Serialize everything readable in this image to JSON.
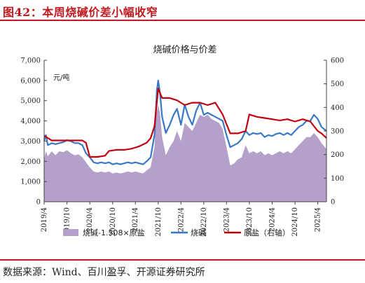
{
  "figure": {
    "title": "图42：本周烧碱价差小幅收窄",
    "source": "数据来源：Wind、百川盈孚、开源证券研究所"
  },
  "colors": {
    "accent": "#c0191f",
    "spread_fill": "#b3a1c9",
    "caustic_line": "#3a78c4",
    "salt_line": "#c0000f"
  },
  "chart_data": {
    "type": "area",
    "title": "烧碱价格与价差",
    "unit_label": "元/吨",
    "x_ticks": [
      "2019/4",
      "2019/10",
      "2020/4",
      "2020/10",
      "2021/4",
      "2021/10",
      "2022/4",
      "2022/10",
      "2023/4",
      "2023/10",
      "2024/4",
      "2024/10",
      "2025/4"
    ],
    "x_range": [
      "2019-04-01",
      "2025-06-10"
    ],
    "y_left": {
      "min": 0,
      "max": 7000,
      "ticks": [
        "0",
        "1,000",
        "2,000",
        "3,000",
        "4,000",
        "5,000",
        "6,000",
        "7,000"
      ]
    },
    "y_right": {
      "min": 0,
      "max": 600,
      "ticks": [
        "0",
        "100",
        "200",
        "300",
        "400",
        "500",
        "600"
      ]
    },
    "legend_position": "bottom",
    "series": [
      {
        "name": "烧碱-1.508×原盐",
        "kind": "area",
        "axis": "left",
        "points": [
          [
            "2019-04-01",
            2100
          ],
          [
            "2019-04-15",
            2500
          ],
          [
            "2019-05-01",
            2250
          ],
          [
            "2019-06-01",
            2500
          ],
          [
            "2019-07-01",
            2300
          ],
          [
            "2019-08-01",
            2500
          ],
          [
            "2019-09-01",
            2450
          ],
          [
            "2019-10-01",
            2550
          ],
          [
            "2019-11-01",
            2400
          ],
          [
            "2019-12-01",
            2300
          ],
          [
            "2020-01-01",
            2350
          ],
          [
            "2020-02-01",
            2200
          ],
          [
            "2020-03-01",
            1950
          ],
          [
            "2020-04-01",
            1700
          ],
          [
            "2020-05-01",
            1500
          ],
          [
            "2020-06-01",
            1450
          ],
          [
            "2020-07-01",
            1500
          ],
          [
            "2020-08-01",
            1450
          ],
          [
            "2020-09-01",
            1500
          ],
          [
            "2020-10-01",
            1400
          ],
          [
            "2020-11-01",
            1450
          ],
          [
            "2020-12-01",
            1400
          ],
          [
            "2021-01-01",
            1450
          ],
          [
            "2021-02-01",
            1500
          ],
          [
            "2021-03-01",
            1450
          ],
          [
            "2021-04-01",
            1500
          ],
          [
            "2021-05-01",
            1450
          ],
          [
            "2021-06-01",
            1400
          ],
          [
            "2021-07-01",
            1550
          ],
          [
            "2021-08-01",
            1700
          ],
          [
            "2021-09-01",
            2700
          ],
          [
            "2021-09-15",
            4300
          ],
          [
            "2021-10-01",
            4800
          ],
          [
            "2021-10-15",
            4400
          ],
          [
            "2021-11-01",
            3200
          ],
          [
            "2021-12-01",
            2300
          ],
          [
            "2022-01-01",
            2700
          ],
          [
            "2022-02-01",
            3000
          ],
          [
            "2022-03-01",
            3500
          ],
          [
            "2022-04-01",
            3000
          ],
          [
            "2022-05-01",
            3900
          ],
          [
            "2022-06-01",
            3700
          ],
          [
            "2022-07-01",
            3500
          ],
          [
            "2022-08-01",
            3900
          ],
          [
            "2022-09-01",
            4300
          ],
          [
            "2022-10-01",
            4200
          ],
          [
            "2022-11-01",
            4300
          ],
          [
            "2022-12-01",
            4100
          ],
          [
            "2023-01-01",
            4000
          ],
          [
            "2023-02-01",
            3900
          ],
          [
            "2023-03-01",
            3600
          ],
          [
            "2023-04-01",
            2700
          ],
          [
            "2023-05-01",
            1800
          ],
          [
            "2023-06-01",
            1900
          ],
          [
            "2023-07-01",
            2100
          ],
          [
            "2023-08-01",
            2200
          ],
          [
            "2023-09-01",
            2800
          ],
          [
            "2023-10-01",
            2400
          ],
          [
            "2023-11-01",
            2500
          ],
          [
            "2023-12-01",
            2400
          ],
          [
            "2024-01-01",
            2500
          ],
          [
            "2024-02-01",
            2300
          ],
          [
            "2024-03-01",
            2400
          ],
          [
            "2024-04-01",
            2300
          ],
          [
            "2024-05-01",
            2400
          ],
          [
            "2024-06-01",
            2500
          ],
          [
            "2024-07-01",
            2400
          ],
          [
            "2024-08-01",
            2500
          ],
          [
            "2024-09-01",
            2400
          ],
          [
            "2024-10-01",
            2600
          ],
          [
            "2024-11-01",
            2800
          ],
          [
            "2024-12-01",
            3000
          ],
          [
            "2025-01-01",
            3200
          ],
          [
            "2025-02-01",
            3200
          ],
          [
            "2025-03-01",
            3400
          ],
          [
            "2025-04-01",
            3200
          ],
          [
            "2025-05-01",
            2900
          ],
          [
            "2025-06-10",
            2600
          ]
        ]
      },
      {
        "name": "烧碱",
        "kind": "line",
        "axis": "left",
        "points": [
          [
            "2019-04-01",
            3000
          ],
          [
            "2019-04-15",
            3300
          ],
          [
            "2019-05-01",
            2800
          ],
          [
            "2019-06-01",
            2900
          ],
          [
            "2019-07-01",
            2850
          ],
          [
            "2019-08-01",
            2900
          ],
          [
            "2019-09-01",
            2950
          ],
          [
            "2019-10-01",
            3050
          ],
          [
            "2019-11-01",
            3000
          ],
          [
            "2019-12-01",
            2900
          ],
          [
            "2020-01-01",
            2900
          ],
          [
            "2020-02-01",
            2800
          ],
          [
            "2020-03-01",
            2400
          ],
          [
            "2020-04-01",
            2200
          ],
          [
            "2020-05-01",
            1950
          ],
          [
            "2020-06-01",
            1900
          ],
          [
            "2020-07-01",
            1950
          ],
          [
            "2020-08-01",
            1900
          ],
          [
            "2020-09-01",
            1950
          ],
          [
            "2020-10-01",
            1850
          ],
          [
            "2020-11-01",
            1900
          ],
          [
            "2020-12-01",
            1850
          ],
          [
            "2021-01-01",
            1900
          ],
          [
            "2021-02-01",
            1950
          ],
          [
            "2021-03-01",
            1900
          ],
          [
            "2021-04-01",
            1950
          ],
          [
            "2021-05-01",
            1900
          ],
          [
            "2021-06-01",
            1850
          ],
          [
            "2021-07-01",
            2000
          ],
          [
            "2021-08-01",
            2200
          ],
          [
            "2021-09-01",
            3300
          ],
          [
            "2021-09-20",
            5500
          ],
          [
            "2021-10-01",
            6000
          ],
          [
            "2021-10-15",
            5400
          ],
          [
            "2021-11-01",
            4200
          ],
          [
            "2021-12-01",
            3400
          ],
          [
            "2022-01-01",
            3800
          ],
          [
            "2022-02-01",
            4300
          ],
          [
            "2022-03-01",
            4600
          ],
          [
            "2022-04-01",
            3800
          ],
          [
            "2022-05-01",
            4800
          ],
          [
            "2022-06-01",
            4200
          ],
          [
            "2022-07-01",
            3800
          ],
          [
            "2022-08-01",
            4500
          ],
          [
            "2022-09-01",
            4900
          ],
          [
            "2022-10-01",
            4300
          ],
          [
            "2022-11-01",
            4400
          ],
          [
            "2022-12-01",
            4300
          ],
          [
            "2023-01-01",
            4200
          ],
          [
            "2023-02-01",
            4100
          ],
          [
            "2023-03-01",
            4000
          ],
          [
            "2023-04-01",
            3300
          ],
          [
            "2023-05-01",
            2700
          ],
          [
            "2023-06-01",
            2800
          ],
          [
            "2023-07-01",
            2900
          ],
          [
            "2023-08-01",
            3100
          ],
          [
            "2023-09-01",
            3500
          ],
          [
            "2023-10-01",
            3300
          ],
          [
            "2023-11-01",
            3400
          ],
          [
            "2023-12-01",
            3350
          ],
          [
            "2024-01-01",
            3400
          ],
          [
            "2024-02-01",
            3200
          ],
          [
            "2024-03-01",
            3300
          ],
          [
            "2024-04-01",
            3250
          ],
          [
            "2024-05-01",
            3350
          ],
          [
            "2024-06-01",
            3400
          ],
          [
            "2024-07-01",
            3300
          ],
          [
            "2024-08-01",
            3400
          ],
          [
            "2024-09-01",
            3300
          ],
          [
            "2024-10-01",
            3500
          ],
          [
            "2024-11-01",
            3700
          ],
          [
            "2024-12-01",
            3800
          ],
          [
            "2025-01-01",
            4000
          ],
          [
            "2025-02-01",
            4000
          ],
          [
            "2025-03-01",
            4300
          ],
          [
            "2025-04-01",
            4100
          ],
          [
            "2025-05-01",
            3700
          ],
          [
            "2025-06-10",
            3500
          ]
        ]
      },
      {
        "name": "原盐（右轴）",
        "kind": "line",
        "axis": "right",
        "points": [
          [
            "2019-04-01",
            280
          ],
          [
            "2019-05-01",
            270
          ],
          [
            "2019-06-01",
            260
          ],
          [
            "2019-08-01",
            260
          ],
          [
            "2019-10-01",
            260
          ],
          [
            "2019-12-01",
            260
          ],
          [
            "2020-02-01",
            260
          ],
          [
            "2020-03-01",
            250
          ],
          [
            "2020-04-01",
            190
          ],
          [
            "2020-06-01",
            190
          ],
          [
            "2020-08-01",
            195
          ],
          [
            "2020-09-01",
            215
          ],
          [
            "2020-11-01",
            220
          ],
          [
            "2021-01-01",
            220
          ],
          [
            "2021-03-01",
            225
          ],
          [
            "2021-05-01",
            235
          ],
          [
            "2021-07-01",
            250
          ],
          [
            "2021-08-01",
            270
          ],
          [
            "2021-09-01",
            320
          ],
          [
            "2021-10-01",
            480
          ],
          [
            "2021-11-01",
            440
          ],
          [
            "2022-01-01",
            440
          ],
          [
            "2022-03-01",
            430
          ],
          [
            "2022-05-01",
            410
          ],
          [
            "2022-07-01",
            420
          ],
          [
            "2022-09-01",
            420
          ],
          [
            "2022-11-01",
            410
          ],
          [
            "2023-01-01",
            420
          ],
          [
            "2023-03-01",
            370
          ],
          [
            "2023-05-01",
            290
          ],
          [
            "2023-07-01",
            290
          ],
          [
            "2023-09-01",
            300
          ],
          [
            "2023-10-01",
            370
          ],
          [
            "2023-12-01",
            360
          ],
          [
            "2024-02-01",
            355
          ],
          [
            "2024-04-01",
            350
          ],
          [
            "2024-06-01",
            345
          ],
          [
            "2024-08-01",
            350
          ],
          [
            "2024-10-01",
            340
          ],
          [
            "2024-12-01",
            350
          ],
          [
            "2025-02-01",
            340
          ],
          [
            "2025-04-01",
            300
          ],
          [
            "2025-05-01",
            290
          ],
          [
            "2025-06-10",
            270
          ]
        ]
      }
    ]
  }
}
